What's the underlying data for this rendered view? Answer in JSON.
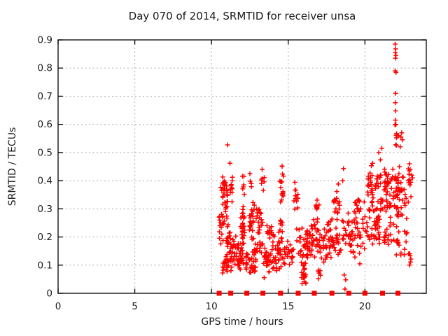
{
  "chart_data": {
    "type": "scatter",
    "title": "Day 070 of 2014, SRMTID for receiver unsa",
    "xlabel": "GPS time / hours",
    "ylabel": "SRMTID / TECUs",
    "xlim": [
      0,
      24
    ],
    "ylim": [
      0,
      0.9
    ],
    "xticks": [
      0,
      5,
      10,
      15,
      20
    ],
    "yticks": [
      0,
      0.1,
      0.2,
      0.3,
      0.4,
      0.5,
      0.6,
      0.7,
      0.8,
      0.9
    ],
    "grid": true,
    "legend": "none",
    "colors": {
      "marker": "#ff0000",
      "grid": "#aaaaaa",
      "axis": "#000000",
      "text": "#1a1a1a",
      "background": "#ffffff"
    },
    "rng_seed": 20140070,
    "series": [
      {
        "name": "srmtid-scatter",
        "marker": "plus",
        "clusters": [
          [
            10.5,
            10.75,
            0.15,
            0.33,
            14
          ],
          [
            10.6,
            11.05,
            0.22,
            0.46,
            36
          ],
          [
            10.7,
            11.35,
            0.05,
            0.16,
            22
          ],
          [
            10.9,
            11.6,
            0.1,
            0.25,
            38
          ],
          [
            11.15,
            11.45,
            0.3,
            0.45,
            10
          ],
          [
            11.6,
            12.1,
            0.08,
            0.2,
            34
          ],
          [
            11.9,
            12.2,
            0.17,
            0.33,
            24
          ],
          [
            12.0,
            12.15,
            0.33,
            0.44,
            6
          ],
          [
            12.2,
            12.9,
            0.05,
            0.18,
            38
          ],
          [
            12.45,
            12.8,
            0.18,
            0.33,
            26
          ],
          [
            12.5,
            12.62,
            0.35,
            0.43,
            3
          ],
          [
            12.9,
            13.35,
            0.12,
            0.32,
            28
          ],
          [
            13.25,
            13.45,
            0.33,
            0.45,
            7
          ],
          [
            13.4,
            14.25,
            0.05,
            0.18,
            40
          ],
          [
            13.6,
            14.1,
            0.18,
            0.26,
            16
          ],
          [
            14.45,
            14.7,
            0.27,
            0.46,
            15
          ],
          [
            14.35,
            14.75,
            0.13,
            0.27,
            13
          ],
          [
            14.3,
            15.35,
            0.08,
            0.22,
            40
          ],
          [
            15.35,
            15.65,
            0.22,
            0.43,
            12
          ],
          [
            15.55,
            16.3,
            0.1,
            0.25,
            36
          ],
          [
            15.85,
            16.15,
            0.03,
            0.12,
            20
          ],
          [
            16.35,
            17.2,
            0.1,
            0.28,
            46
          ],
          [
            16.8,
            17.05,
            0.28,
            0.34,
            8
          ],
          [
            16.95,
            17.1,
            0.04,
            0.1,
            6
          ],
          [
            17.25,
            18.0,
            0.1,
            0.27,
            40
          ],
          [
            17.95,
            18.4,
            0.25,
            0.42,
            18
          ],
          [
            18.05,
            18.45,
            0.12,
            0.25,
            15
          ],
          [
            18.5,
            18.8,
            0.13,
            0.3,
            11
          ],
          [
            18.85,
            19.75,
            0.1,
            0.3,
            40
          ],
          [
            19.3,
            19.75,
            0.25,
            0.35,
            14
          ],
          [
            19.85,
            21.0,
            0.15,
            0.34,
            48
          ],
          [
            20.15,
            21.0,
            0.28,
            0.47,
            38
          ],
          [
            21.0,
            22.0,
            0.24,
            0.5,
            60
          ],
          [
            21.05,
            21.95,
            0.15,
            0.26,
            18
          ],
          [
            22.0,
            22.5,
            0.25,
            0.47,
            36
          ],
          [
            22.05,
            22.45,
            0.1,
            0.25,
            12
          ],
          [
            22.0,
            22.2,
            0.5,
            0.6,
            7
          ],
          [
            22.55,
            22.75,
            0.1,
            0.45,
            12
          ],
          [
            22.8,
            23.05,
            0.3,
            0.47,
            10
          ],
          [
            22.85,
            23.0,
            0.1,
            0.16,
            4
          ]
        ],
        "points": [
          [
            10.5,
            0.27
          ],
          [
            11.05,
            0.527
          ],
          [
            11.2,
            0.462
          ],
          [
            12.5,
            0.425
          ],
          [
            13.3,
            0.44
          ],
          [
            14.6,
            0.452
          ],
          [
            16.15,
            0.035
          ],
          [
            18.55,
            0.4
          ],
          [
            18.6,
            0.443
          ],
          [
            18.65,
            0.065
          ],
          [
            18.7,
            0.015
          ],
          [
            18.75,
            0.048
          ],
          [
            20.9,
            0.5
          ],
          [
            21.1,
            0.515
          ],
          [
            21.97,
            0.885
          ],
          [
            22.0,
            0.868
          ],
          [
            21.98,
            0.855
          ],
          [
            22.02,
            0.845
          ],
          [
            21.99,
            0.835
          ],
          [
            21.97,
            0.79
          ],
          [
            22.03,
            0.785
          ],
          [
            22.0,
            0.71
          ],
          [
            21.98,
            0.677
          ],
          [
            22.0,
            0.648
          ],
          [
            21.99,
            0.615
          ],
          [
            22.02,
            0.6
          ],
          [
            21.96,
            0.598
          ],
          [
            22.4,
            0.57
          ],
          [
            22.35,
            0.555
          ],
          [
            22.45,
            0.545
          ],
          [
            22.3,
            0.52
          ],
          [
            22.9,
            0.46
          ],
          [
            22.95,
            0.44
          ],
          [
            23.05,
            0.42
          ],
          [
            23.1,
            0.41
          ],
          [
            22.85,
            0.14
          ],
          [
            22.9,
            0.1
          ]
        ]
      },
      {
        "name": "pass-markers",
        "marker": "filled-square",
        "y": 0,
        "x": [
          10.5,
          11.25,
          12.3,
          13.35,
          14.5,
          15.65,
          16.7,
          17.85,
          18.95,
          20.0,
          21.15,
          22.15
        ]
      }
    ]
  }
}
